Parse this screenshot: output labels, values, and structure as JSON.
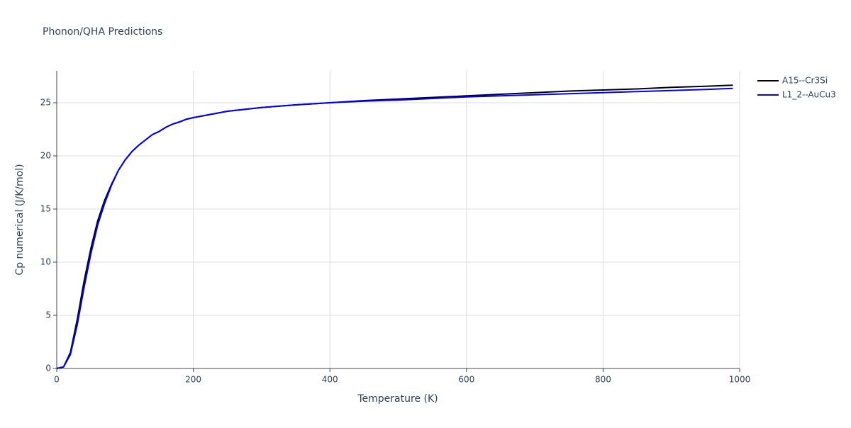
{
  "chart_data": {
    "type": "line",
    "title": "Phonon/QHA Predictions",
    "x_label": "Temperature (K)",
    "y_label": "Cp numerical (J/K/mol)",
    "x": [
      0,
      10,
      20,
      30,
      40,
      50,
      60,
      70,
      80,
      90,
      100,
      110,
      120,
      130,
      140,
      150,
      160,
      170,
      180,
      190,
      200,
      250,
      300,
      350,
      400,
      450,
      500,
      550,
      600,
      650,
      700,
      750,
      800,
      850,
      900,
      950,
      990
    ],
    "series": [
      {
        "name": "A15--Cr3Si",
        "color": "#000000",
        "values": [
          0,
          0.15,
          1.5,
          4.6,
          8.2,
          11.3,
          13.9,
          15.8,
          17.3,
          18.6,
          19.6,
          20.4,
          21.0,
          21.5,
          22.0,
          22.3,
          22.7,
          23.0,
          23.2,
          23.45,
          23.6,
          24.2,
          24.55,
          24.8,
          25.0,
          25.2,
          25.35,
          25.5,
          25.65,
          25.8,
          25.95,
          26.1,
          26.2,
          26.3,
          26.45,
          26.55,
          26.65
        ]
      },
      {
        "name": "L1_2--AuCu3",
        "color": "#0000ff",
        "values": [
          0,
          0.15,
          1.3,
          4.1,
          7.6,
          10.8,
          13.5,
          15.5,
          17.2,
          18.6,
          19.6,
          20.4,
          21.0,
          21.5,
          22.0,
          22.3,
          22.7,
          23.0,
          23.2,
          23.45,
          23.6,
          24.2,
          24.55,
          24.8,
          25.0,
          25.15,
          25.25,
          25.4,
          25.55,
          25.65,
          25.75,
          25.85,
          25.95,
          26.05,
          26.15,
          26.25,
          26.35
        ]
      }
    ],
    "xlim": [
      0,
      1000
    ],
    "xticks": [
      0,
      200,
      400,
      600,
      800,
      1000
    ],
    "ylim": [
      0,
      28
    ],
    "yticks": [
      0,
      5,
      10,
      15,
      20,
      25
    ],
    "grid": true,
    "legend": "right"
  }
}
